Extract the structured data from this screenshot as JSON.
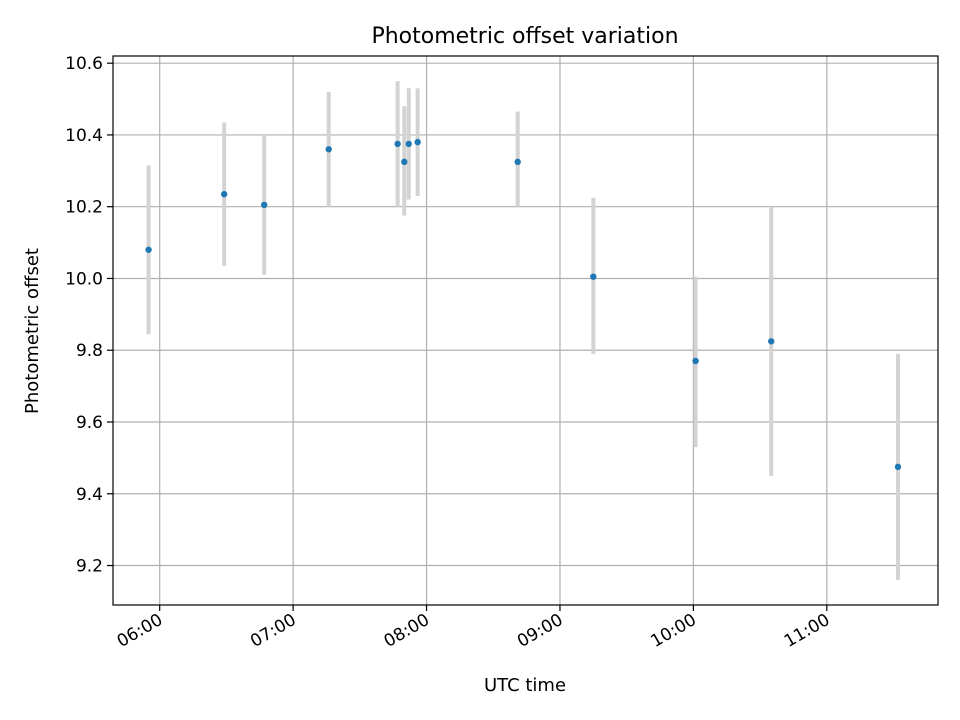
{
  "chart_data": {
    "type": "scatter",
    "title": "Photometric offset variation",
    "xlabel": "UTC time",
    "ylabel": "Photometric offset",
    "x_axis_type": "time",
    "xlim": [
      "05:39",
      "11:50"
    ],
    "ylim": [
      9.09,
      10.62
    ],
    "xticks": [
      "06:00",
      "07:00",
      "08:00",
      "09:00",
      "10:00",
      "11:00"
    ],
    "yticks": [
      9.2,
      9.4,
      9.6,
      9.8,
      10.0,
      10.2,
      10.4,
      10.6
    ],
    "ytick_labels": [
      "9.2",
      "9.4",
      "9.6",
      "9.8",
      "10.0",
      "10.2",
      "10.4",
      "10.6"
    ],
    "grid": true,
    "legend": "none",
    "points": [
      {
        "x": "05:55",
        "y": 10.08,
        "ymin": 9.845,
        "ymax": 10.315
      },
      {
        "x": "06:29",
        "y": 10.235,
        "ymin": 10.035,
        "ymax": 10.435
      },
      {
        "x": "06:47",
        "y": 10.205,
        "ymin": 10.01,
        "ymax": 10.4
      },
      {
        "x": "07:16",
        "y": 10.36,
        "ymin": 10.2,
        "ymax": 10.52
      },
      {
        "x": "07:47",
        "y": 10.375,
        "ymin": 10.2,
        "ymax": 10.55
      },
      {
        "x": "07:50",
        "y": 10.325,
        "ymin": 10.175,
        "ymax": 10.48
      },
      {
        "x": "07:52",
        "y": 10.375,
        "ymin": 10.22,
        "ymax": 10.53
      },
      {
        "x": "07:56",
        "y": 10.38,
        "ymin": 10.23,
        "ymax": 10.53
      },
      {
        "x": "08:41",
        "y": 10.325,
        "ymin": 10.2,
        "ymax": 10.465
      },
      {
        "x": "09:15",
        "y": 10.005,
        "ymin": 9.79,
        "ymax": 10.225
      },
      {
        "x": "10:01",
        "y": 9.77,
        "ymin": 9.53,
        "ymax": 10.005
      },
      {
        "x": "10:35",
        "y": 9.825,
        "ymin": 9.45,
        "ymax": 10.2
      },
      {
        "x": "11:32",
        "y": 9.475,
        "ymin": 9.16,
        "ymax": 9.79
      }
    ],
    "colors": {
      "point": "#1f77b4",
      "errorbar": "#d3d3d3",
      "grid": "#b0b0b0",
      "axes": "#000000"
    }
  }
}
